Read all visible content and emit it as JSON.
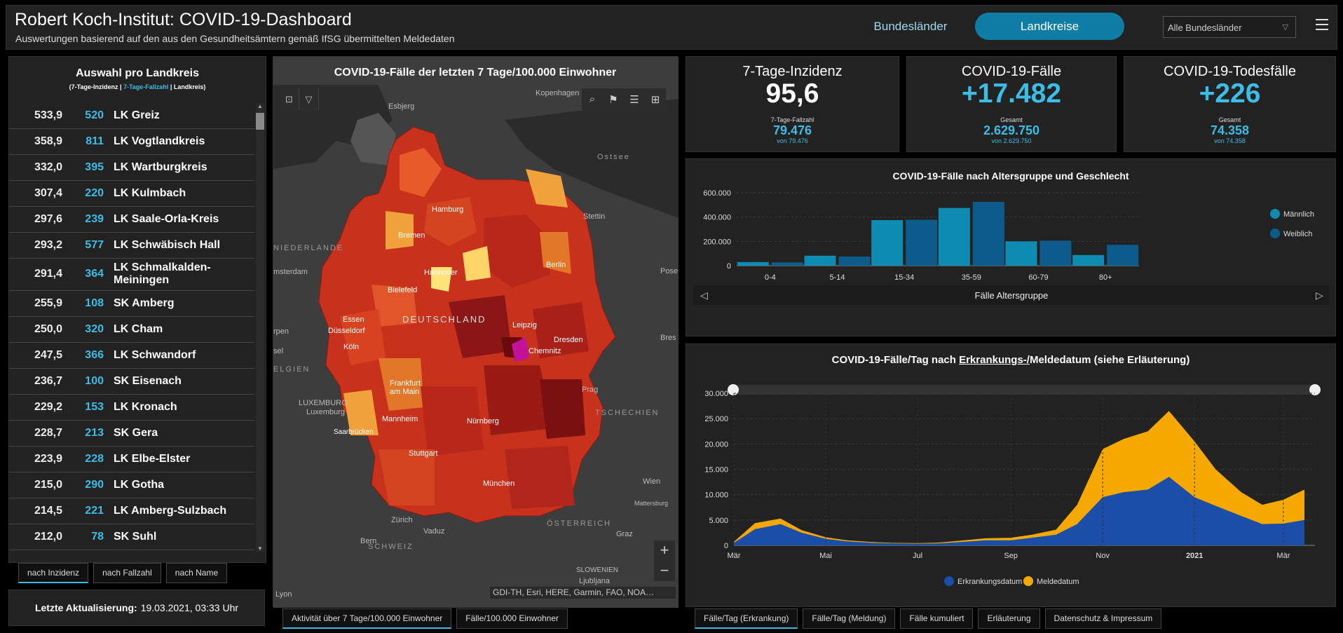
{
  "header": {
    "title": "Robert Koch-Institut: COVID-19-Dashboard",
    "subtitle": "Auswertungen basierend auf den aus den Gesundheitsämtern gemäß IfSG übermittelten Meldedaten",
    "nav_bundeslaender": "Bundesländer",
    "nav_landkreise": "Landkreise",
    "state_select": "Alle Bundesländer"
  },
  "left_panel": {
    "title": "Auswahl pro Landkreis",
    "sub_a": "(7-Tage-Inzidenz | ",
    "sub_b": "7-Tage-Fallzahl",
    "sub_c": " | Landkreis)",
    "rows": [
      {
        "inc": "533,9",
        "cnt": "520",
        "name": "LK Greiz"
      },
      {
        "inc": "358,9",
        "cnt": "811",
        "name": "LK Vogtlandkreis"
      },
      {
        "inc": "332,0",
        "cnt": "395",
        "name": "LK Wartburgkreis"
      },
      {
        "inc": "307,4",
        "cnt": "220",
        "name": "LK Kulmbach"
      },
      {
        "inc": "297,6",
        "cnt": "239",
        "name": "LK Saale-Orla-Kreis"
      },
      {
        "inc": "293,2",
        "cnt": "577",
        "name": "LK Schwäbisch Hall"
      },
      {
        "inc": "291,4",
        "cnt": "364",
        "name": "LK Schmalkalden-Meiningen"
      },
      {
        "inc": "255,9",
        "cnt": "108",
        "name": "SK Amberg"
      },
      {
        "inc": "250,0",
        "cnt": "320",
        "name": "LK Cham"
      },
      {
        "inc": "247,5",
        "cnt": "366",
        "name": "LK Schwandorf"
      },
      {
        "inc": "236,7",
        "cnt": "100",
        "name": "SK Eisenach"
      },
      {
        "inc": "229,2",
        "cnt": "153",
        "name": "LK Kronach"
      },
      {
        "inc": "228,7",
        "cnt": "213",
        "name": "SK Gera"
      },
      {
        "inc": "223,9",
        "cnt": "228",
        "name": "LK Elbe-Elster"
      },
      {
        "inc": "215,0",
        "cnt": "290",
        "name": "LK Gotha"
      },
      {
        "inc": "214,5",
        "cnt": "221",
        "name": "LK Amberg-Sulzbach"
      },
      {
        "inc": "212,0",
        "cnt": "78",
        "name": "SK Suhl"
      }
    ],
    "tabs": [
      "nach Inzidenz",
      "nach Fallzahl",
      "nach Name"
    ],
    "update_label": "Letzte Aktualisierung:",
    "update_value": "19.03.2021, 03:33 Uhr"
  },
  "map": {
    "title": "COVID-19-Fälle der letzten 7 Tage/100.000 Einwohner",
    "attribution": "GDI-TH, Esri, HERE, Garmin, FAO, NOA…",
    "labels": {
      "kopenhagen": "Kopenhagen",
      "esbjerg": "Esbjerg",
      "ostsee": "Ostsee",
      "hamburg": "Hamburg",
      "stettin": "Stettin",
      "bremen": "Bremen",
      "niederlande": "NIEDERLANDE",
      "amsterdam": "msterdam",
      "hannover": "Hannover",
      "berlin": "Berlin",
      "posen": "Pose",
      "bielefeld": "Bielefeld",
      "deutschland": "DEUTSCHLAND",
      "essen": "Essen",
      "duesseldorf": "Düsseldorf",
      "leipzig": "Leipzig",
      "dresden": "Dresden",
      "breslau": "Bres",
      "koeln": "Köln",
      "chemnitz": "Chemnitz",
      "rpen": "rpen",
      "sel": "sel",
      "belgien": "ELGIEN",
      "frankfurt": "Frankfurt am Main",
      "prag": "Prag",
      "luxemburg_c": "LUXEMBURG",
      "luxemburg": "Luxemburg",
      "mannheim": "Mannheim",
      "nuernberg": "Nürnberg",
      "tschechien": "TSCHECHIEN",
      "saarbruecken": "Saarbrücken",
      "stuttgart": "Stuttgart",
      "wien": "Wien",
      "muenchen": "München",
      "mattersburg": "Mattersburg",
      "zuerich": "Zürich",
      "oesterreich": "ÖSTERREICH",
      "vaduz": "Vaduz",
      "graz": "Graz",
      "bern": "Bern",
      "schweiz": "SCHWEIZ",
      "slowenien": "SLOWENIEN",
      "ljubljana": "Ljubljana",
      "lyon": "Lyon"
    },
    "tabs": [
      "Aktivität über 7 Tage/100.000 Einwohner",
      "Fälle/100.000 Einwohner"
    ]
  },
  "kpis": {
    "incidence": {
      "title": "7-Tage-Inzidenz",
      "value": "95,6",
      "sub_label": "7-Tage-Fallzahl",
      "sub_value": "79.476",
      "sub_note": "von 79.476"
    },
    "cases": {
      "title": "COVID-19-Fälle",
      "value": "+17.482",
      "sub_label": "Gesamt",
      "sub_value": "2.629.750",
      "sub_note": "von 2.629.750"
    },
    "deaths": {
      "title": "COVID-19-Todesfälle",
      "value": "+226",
      "sub_label": "Gesamt",
      "sub_value": "74.358",
      "sub_note": "von 74.358"
    }
  },
  "colors": {
    "accent": "#3bbde6",
    "male": "#0e8bb3",
    "female": "#0b5c8a",
    "erkrankung": "#1a4ea8",
    "melde": "#f5a800"
  },
  "chart_data": [
    {
      "type": "bar",
      "title": "COVID-19-Fälle nach Altersgruppe und Geschlecht",
      "xlabel": "Fälle Altersgruppe",
      "ylabel": "",
      "categories": [
        "0-4",
        "5-14",
        "15-34",
        "35-59",
        "60-79",
        "80+"
      ],
      "ylim": [
        0,
        600000
      ],
      "yticks": [
        "0",
        "200.000",
        "400.000",
        "600.000"
      ],
      "legend": "right",
      "series": [
        {
          "name": "Männlich",
          "values": [
            30000,
            82000,
            375000,
            475000,
            200000,
            88000
          ]
        },
        {
          "name": "Weiblich",
          "values": [
            27000,
            75000,
            378000,
            525000,
            206000,
            172000
          ]
        }
      ]
    },
    {
      "type": "area",
      "title_pre": "COVID-19-Fälle/Tag nach ",
      "title_link": "Erkrankungs-/",
      "title_post": "Meldedatum (siehe Erläuterung)",
      "ylim": [
        0,
        30000
      ],
      "yticks": [
        "0",
        "5.000",
        "10.000",
        "15.000",
        "20.000",
        "25.000",
        "30.000"
      ],
      "xticks": [
        "Mär",
        "Mai",
        "Jul",
        "Sep",
        "Nov",
        "2021",
        "Mär"
      ],
      "legend": "bottom",
      "x": [
        "2020-03-01",
        "2020-03-15",
        "2020-04-01",
        "2020-04-15",
        "2020-05-01",
        "2020-05-15",
        "2020-06-01",
        "2020-06-15",
        "2020-07-01",
        "2020-07-15",
        "2020-08-01",
        "2020-08-15",
        "2020-09-01",
        "2020-09-15",
        "2020-10-01",
        "2020-10-15",
        "2020-11-01",
        "2020-11-15",
        "2020-12-01",
        "2020-12-15",
        "2021-01-01",
        "2021-01-15",
        "2021-02-01",
        "2021-02-15",
        "2021-03-01",
        "2021-03-15"
      ],
      "series": [
        {
          "name": "Erkrankungsdatum",
          "values": [
            500,
            3200,
            4200,
            2500,
            1300,
            800,
            500,
            400,
            350,
            400,
            700,
            1000,
            1000,
            1500,
            2100,
            4200,
            9500,
            10500,
            11000,
            13500,
            9500,
            7800,
            5800,
            4200,
            4300,
            5000
          ]
        },
        {
          "name": "Meldedatum",
          "values": [
            700,
            4400,
            5300,
            3000,
            1600,
            1000,
            650,
            500,
            450,
            550,
            1000,
            1400,
            1500,
            2100,
            3100,
            8000,
            19000,
            21000,
            22500,
            26500,
            20500,
            15000,
            10500,
            8000,
            9000,
            11000
          ]
        }
      ]
    }
  ],
  "age_chart_legend": [
    "Männlich",
    "Weiblich"
  ],
  "daily_chart_legend": [
    "Erkrankungsdatum",
    "Meldedatum"
  ],
  "right_tabs": [
    "Fälle/Tag (Erkrankung)",
    "Fälle/Tag (Meldung)",
    "Fälle kumuliert",
    "Erläuterung",
    "Datenschutz & Impressum"
  ]
}
